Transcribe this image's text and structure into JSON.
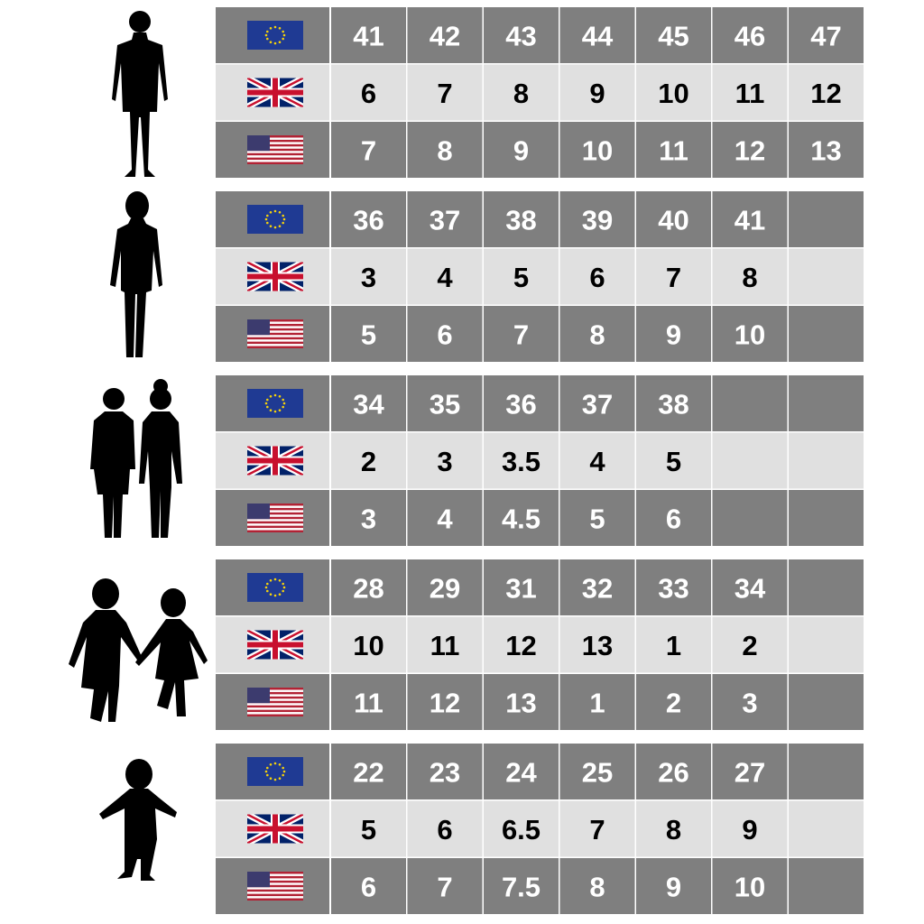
{
  "groups": [
    {
      "eu": [
        41,
        42,
        43,
        44,
        45,
        46,
        47
      ],
      "uk": [
        6,
        7,
        8,
        9,
        10,
        11,
        12
      ],
      "us": [
        7,
        8,
        9,
        10,
        11,
        12,
        13
      ]
    },
    {
      "eu": [
        36,
        37,
        38,
        39,
        40,
        41
      ],
      "uk": [
        3,
        4,
        5,
        6,
        7,
        8
      ],
      "us": [
        5,
        6,
        7,
        8,
        9,
        10
      ]
    },
    {
      "eu": [
        34,
        35,
        36,
        37,
        38
      ],
      "uk": [
        2,
        3,
        3.5,
        4,
        5
      ],
      "us": [
        3,
        4,
        4.5,
        5,
        6
      ]
    },
    {
      "eu": [
        28,
        29,
        31,
        32,
        33,
        34
      ],
      "uk": [
        10,
        11,
        12,
        13,
        1,
        2
      ],
      "us": [
        11,
        12,
        13,
        1,
        2,
        3
      ]
    },
    {
      "eu": [
        22,
        23,
        24,
        25,
        26,
        27
      ],
      "uk": [
        5,
        6,
        6.5,
        7,
        8,
        9
      ],
      "us": [
        6,
        7,
        7.5,
        8,
        9,
        10
      ]
    }
  ]
}
